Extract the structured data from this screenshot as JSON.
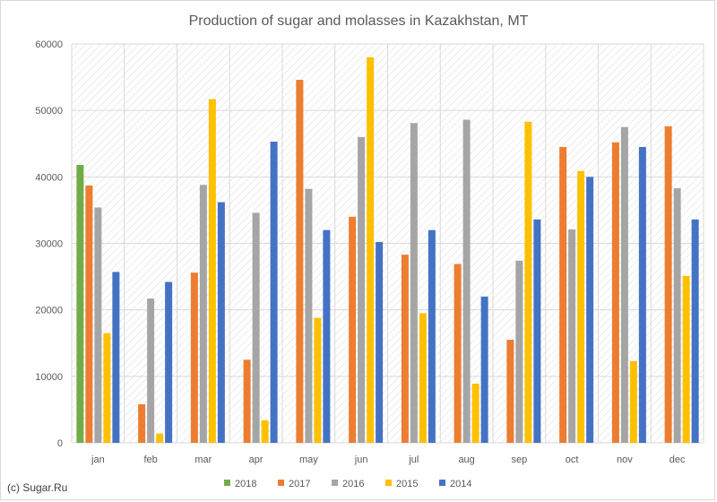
{
  "chart_data": {
    "type": "bar",
    "title": "Production of sugar and molasses in Kazakhstan, MT",
    "categories": [
      "jan",
      "feb",
      "mar",
      "apr",
      "may",
      "jun",
      "jul",
      "aug",
      "sep",
      "oct",
      "nov",
      "dec"
    ],
    "ylim": [
      0,
      60000
    ],
    "yticks": [
      0,
      10000,
      20000,
      30000,
      40000,
      50000,
      60000
    ],
    "grid": true,
    "legend": "bottom",
    "series": [
      {
        "name": "2018",
        "color": "#70ad47",
        "values": [
          41800,
          null,
          null,
          null,
          null,
          null,
          null,
          null,
          null,
          null,
          null,
          null
        ]
      },
      {
        "name": "2017",
        "color": "#ed7d31",
        "values": [
          38700,
          5800,
          25600,
          12500,
          54600,
          34000,
          28300,
          26900,
          15500,
          44500,
          45200,
          47600
        ]
      },
      {
        "name": "2016",
        "color": "#a5a5a5",
        "values": [
          35400,
          21700,
          38800,
          34600,
          38200,
          46000,
          48100,
          48600,
          27400,
          32100,
          47500,
          38300
        ]
      },
      {
        "name": "2015",
        "color": "#ffc000",
        "values": [
          16500,
          1400,
          51700,
          3400,
          18800,
          58000,
          19500,
          8900,
          48300,
          40900,
          12300,
          25100
        ]
      },
      {
        "name": "2014",
        "color": "#4472c4",
        "values": [
          25700,
          24200,
          36200,
          45300,
          32000,
          30200,
          32000,
          22000,
          33600,
          40000,
          44500,
          33600
        ]
      }
    ]
  },
  "credit": "(c) Sugar.Ru"
}
